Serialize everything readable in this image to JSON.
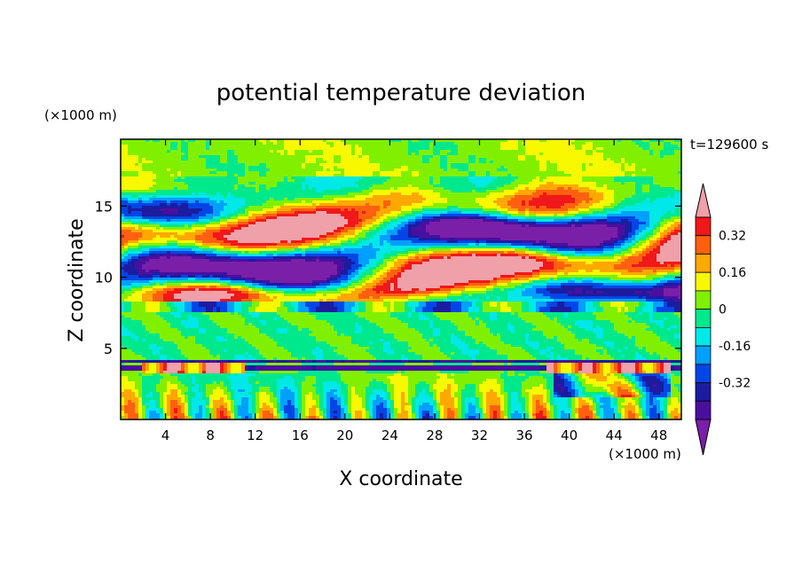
{
  "chart_data": {
    "type": "heatmap",
    "title": "potential temperature deviation",
    "xlabel": "X coordinate",
    "ylabel": "Z coordinate",
    "x_unit": "(×1000 m)",
    "y_unit": "(×1000 m)",
    "time_label": "t=129600 s",
    "xlim": [
      0,
      50
    ],
    "ylim": [
      0,
      19.7
    ],
    "x_ticks": [
      4,
      8,
      12,
      16,
      20,
      24,
      28,
      32,
      36,
      40,
      44,
      48
    ],
    "y_ticks": [
      5,
      10,
      15
    ],
    "colorbar": {
      "levels": [
        -0.48,
        -0.4,
        -0.32,
        -0.24,
        -0.16,
        -0.08,
        0,
        0.08,
        0.16,
        0.24,
        0.32,
        0.4
      ],
      "colors": [
        "#7a1fa8",
        "#4b0fa0",
        "#1c1ca0",
        "#0046e6",
        "#00a0ff",
        "#00e8e8",
        "#00e88c",
        "#80f000",
        "#f8f800",
        "#ffa800",
        "#ff6010",
        "#f01818",
        "#f0a0a8"
      ],
      "tick_labels": [
        "0.32",
        "0.16",
        "0",
        "-0.16",
        "-0.32"
      ],
      "tick_values": [
        0.32,
        0.16,
        0,
        -0.16,
        -0.32
      ]
    }
  }
}
